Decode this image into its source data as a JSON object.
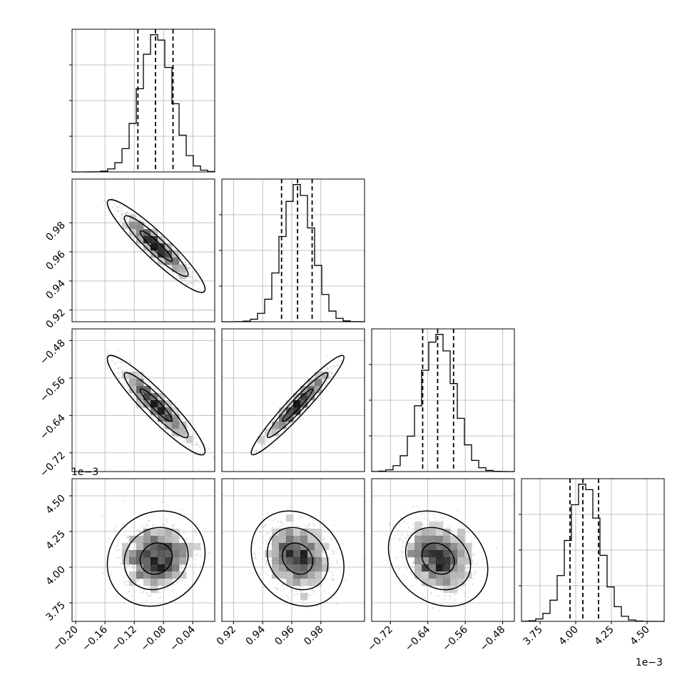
{
  "chart_data": {
    "type": "corner",
    "parameters": [
      {
        "index": 0,
        "range": [
          -0.205,
          -0.01
        ],
        "mean": -0.09,
        "sd": 0.022,
        "q16": -0.115,
        "q50": -0.091,
        "q84": -0.067,
        "ticks": [
          -0.2,
          -0.16,
          -0.12,
          -0.08,
          -0.04
        ],
        "tick_labels": [
          "−0.20",
          "−0.16",
          "−0.12",
          "−0.08",
          "−0.04"
        ]
      },
      {
        "index": 1,
        "range": [
          0.912,
          1.01
        ],
        "mean": 0.964,
        "sd": 0.0105,
        "q16": 0.953,
        "q50": 0.964,
        "q84": 0.974,
        "ticks": [
          0.92,
          0.94,
          0.96,
          0.98
        ],
        "tick_labels": [
          "0.92",
          "0.94",
          "0.96",
          "0.98"
        ]
      },
      {
        "index": 2,
        "range": [
          -0.76,
          -0.455
        ],
        "mean": -0.618,
        "sd": 0.035,
        "q16": -0.651,
        "q50": -0.619,
        "q84": -0.585,
        "ticks": [
          -0.72,
          -0.64,
          -0.56,
          -0.48
        ],
        "tick_labels": [
          "−0.72",
          "−0.64",
          "−0.56",
          "−0.48"
        ]
      },
      {
        "index": 3,
        "range": [
          3.62,
          4.62
        ],
        "mean": 4.06,
        "sd": 0.11,
        "q16": 3.96,
        "q50": 4.05,
        "q84": 4.16,
        "ticks": [
          3.75,
          4.0,
          4.25,
          4.5
        ],
        "tick_labels": [
          "3.75",
          "4.00",
          "4.25",
          "4.50"
        ]
      }
    ],
    "correlations": {
      "0-1": -0.93,
      "0-2": -0.93,
      "1-2": 0.96,
      "0-3": 0.12,
      "1-3": -0.18,
      "2-3": -0.22
    },
    "axis_offset_label": "1e−3",
    "grid": true,
    "hist_bins": 20,
    "quantiles": [
      0.16,
      0.5,
      0.84
    ],
    "contour_levels": [
      0.39,
      0.86,
      0.99
    ],
    "colors": {
      "line": "#000000",
      "grid": "#b0b0b0",
      "points": "#888888",
      "background": "#ffffff"
    }
  }
}
